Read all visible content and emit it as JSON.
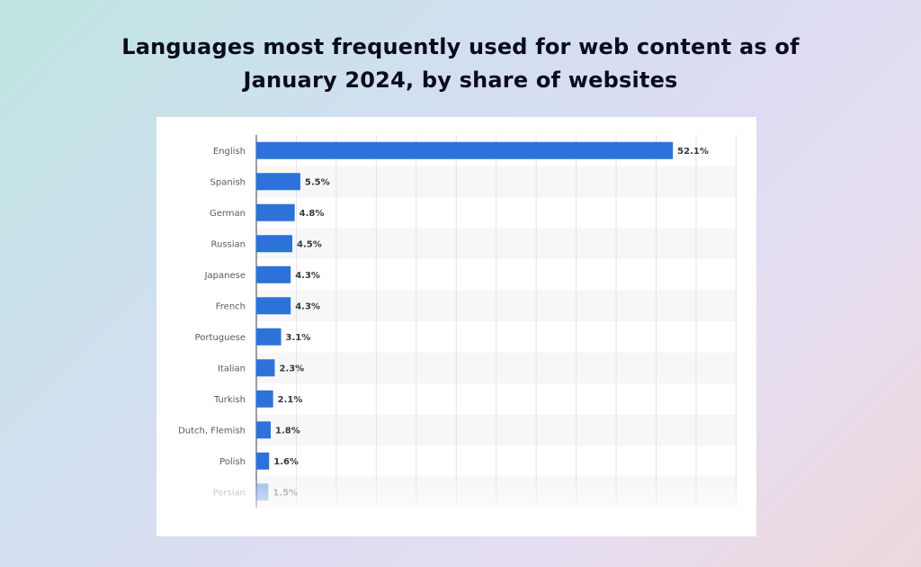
{
  "title_line1": "Languages most frequently used for web content as of",
  "title_line2": "January 2024, by share of websites",
  "colors": {
    "bar": "#2d72d9",
    "grid": "#e1e4ea",
    "band": "#f7f7f7",
    "axis": "#3a3f4a"
  },
  "chart_data": {
    "type": "bar",
    "orientation": "horizontal",
    "title": "Languages most frequently used for web content as of January 2024, by share of websites",
    "categories": [
      "English",
      "Spanish",
      "German",
      "Russian",
      "Japanese",
      "French",
      "Portuguese",
      "Italian",
      "Turkish",
      "Dutch, Flemish",
      "Polish",
      "Persian"
    ],
    "values": [
      52.1,
      5.5,
      4.8,
      4.5,
      4.3,
      4.3,
      3.1,
      2.3,
      2.1,
      1.8,
      1.6,
      1.5
    ],
    "value_labels": [
      "52.1%",
      "5.5%",
      "4.8%",
      "4.5%",
      "4.3%",
      "4.3%",
      "3.1%",
      "2.3%",
      "2.1%",
      "1.8%",
      "1.6%",
      "1.5%"
    ],
    "xlim": [
      0,
      60
    ],
    "grid_step": 5,
    "grid": true,
    "legend": "none"
  }
}
